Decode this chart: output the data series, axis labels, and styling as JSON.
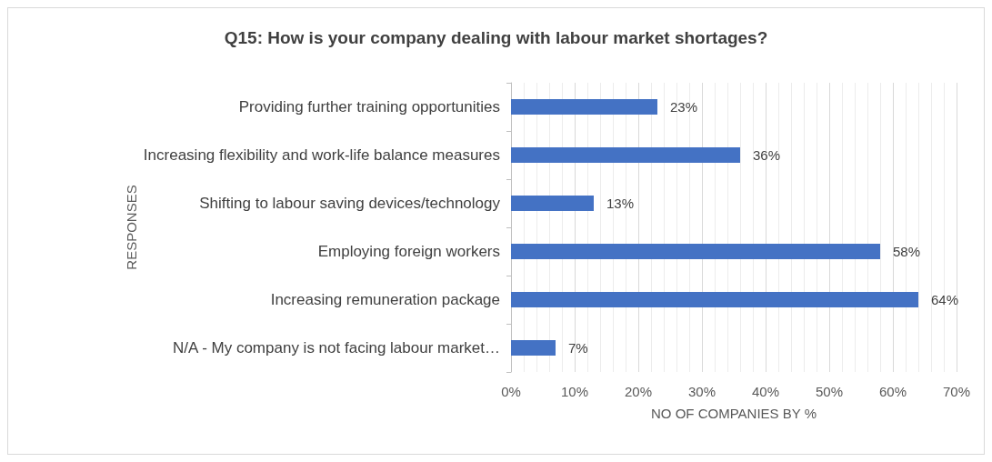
{
  "chart_data": {
    "type": "bar",
    "orientation": "horizontal",
    "title": "Q15: How is your company dealing with labour market shortages?",
    "xlabel": "NO OF COMPANIES BY %",
    "ylabel": "RESPONSES",
    "categories": [
      "Providing further training opportunities",
      "Increasing flexibility and work-life balance measures",
      "Shifting to labour saving devices/technology",
      "Employing foreign workers",
      "Increasing remuneration package",
      "N/A - My company is not facing labour market…"
    ],
    "values": [
      23,
      36,
      13,
      58,
      64,
      7
    ],
    "value_labels": [
      "23%",
      "36%",
      "13%",
      "58%",
      "64%",
      "7%"
    ],
    "color": "#4472c4",
    "xlim": [
      0,
      70
    ],
    "xticks": [
      {
        "value": 0,
        "label": "0%"
      },
      {
        "value": 10,
        "label": "10%"
      },
      {
        "value": 20,
        "label": "20%"
      },
      {
        "value": 30,
        "label": "30%"
      },
      {
        "value": 40,
        "label": "40%"
      },
      {
        "value": 50,
        "label": "50%"
      },
      {
        "value": 60,
        "label": "60%"
      },
      {
        "value": 70,
        "label": "70%"
      }
    ],
    "grid": true
  }
}
